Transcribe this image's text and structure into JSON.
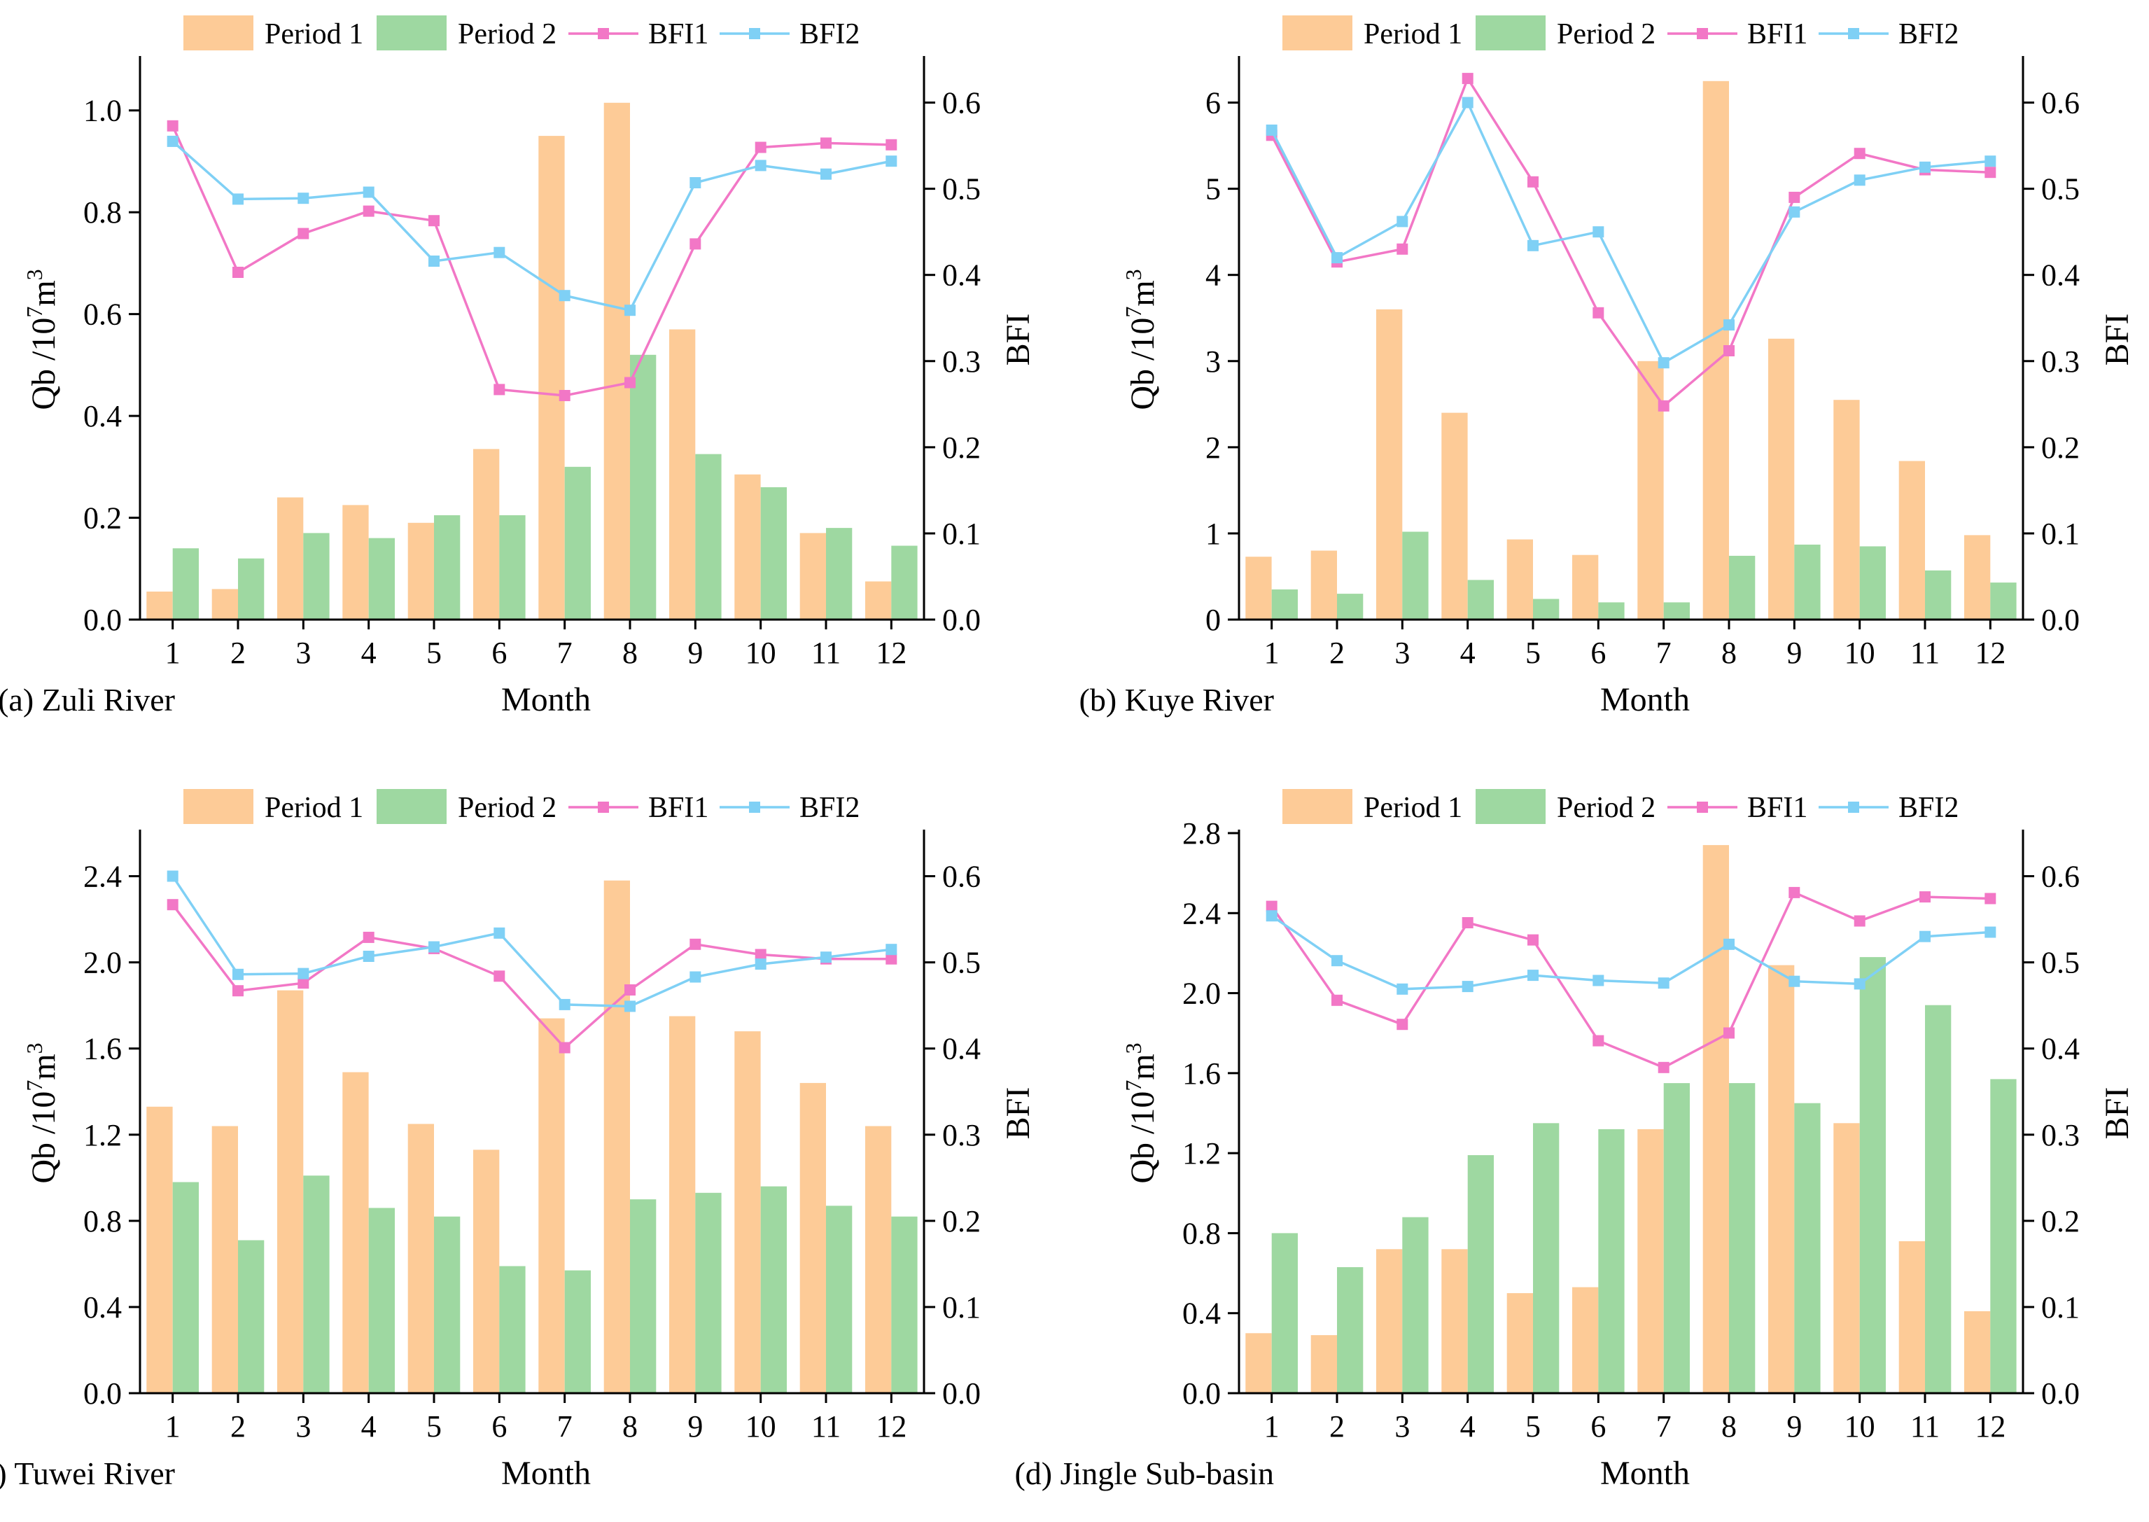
{
  "legend": {
    "p1": "Period 1",
    "p2": "Period 2",
    "b1": "BFI1",
    "b2": "BFI2"
  },
  "colors": {
    "p1": "#FDCB97",
    "p2": "#9ED8A1",
    "b1": "#F277C6",
    "b2": "#7FD0F5",
    "axis": "#000000"
  },
  "chart_data": [
    {
      "type": "bar",
      "panel": "a",
      "title": "(a) Zuli River",
      "xlabel": "Month",
      "ylabel": "Qb /10^7m^3",
      "y2label": "BFI",
      "categories": [
        "1",
        "2",
        "3",
        "4",
        "5",
        "6",
        "7",
        "8",
        "9",
        "10",
        "11",
        "12"
      ],
      "ylim": [
        0,
        1.1
      ],
      "yticks": [
        "0.0",
        "0.2",
        "0.4",
        "0.6",
        "0.8",
        "1.0"
      ],
      "y2lim": [
        0,
        0.65
      ],
      "y2ticks": [
        "0.0",
        "0.1",
        "0.2",
        "0.3",
        "0.4",
        "0.5",
        "0.6"
      ],
      "series": [
        {
          "name": "Period 1",
          "kind": "bar",
          "values": [
            0.055,
            0.06,
            0.24,
            0.225,
            0.19,
            0.335,
            0.95,
            1.015,
            0.57,
            0.285,
            0.17,
            0.075
          ]
        },
        {
          "name": "Period 2",
          "kind": "bar",
          "values": [
            0.14,
            0.12,
            0.17,
            0.16,
            0.205,
            0.205,
            0.3,
            0.52,
            0.325,
            0.26,
            0.18,
            0.145
          ]
        },
        {
          "name": "BFI1",
          "kind": "line",
          "axis": "y2",
          "values": [
            0.573,
            0.403,
            0.448,
            0.474,
            0.463,
            0.267,
            0.26,
            0.275,
            0.436,
            0.548,
            0.553,
            0.551
          ]
        },
        {
          "name": "BFI2",
          "kind": "line",
          "axis": "y2",
          "values": [
            0.555,
            0.488,
            0.489,
            0.496,
            0.416,
            0.426,
            0.376,
            0.359,
            0.507,
            0.527,
            0.517,
            0.532
          ]
        }
      ]
    },
    {
      "type": "bar",
      "panel": "b",
      "title": "(b) Kuye River",
      "xlabel": "Month",
      "ylabel": "Qb /10^7m^3",
      "y2label": "BFI",
      "categories": [
        "1",
        "2",
        "3",
        "4",
        "5",
        "6",
        "7",
        "8",
        "9",
        "10",
        "11",
        "12"
      ],
      "ylim": [
        0,
        6.5
      ],
      "yticks": [
        "0",
        "1",
        "2",
        "3",
        "4",
        "5",
        "6"
      ],
      "y2lim": [
        0,
        0.65
      ],
      "y2ticks": [
        "0.0",
        "0.1",
        "0.2",
        "0.3",
        "0.4",
        "0.5",
        "0.6"
      ],
      "series": [
        {
          "name": "Period 1",
          "kind": "bar",
          "values": [
            0.73,
            0.8,
            3.6,
            2.4,
            0.93,
            0.75,
            3.0,
            6.25,
            3.26,
            2.55,
            1.84,
            0.98
          ]
        },
        {
          "name": "Period 2",
          "kind": "bar",
          "values": [
            0.35,
            0.3,
            1.02,
            0.46,
            0.24,
            0.2,
            0.2,
            0.74,
            0.87,
            0.85,
            0.57,
            0.43
          ]
        },
        {
          "name": "BFI1",
          "kind": "line",
          "axis": "y2",
          "values": [
            0.562,
            0.415,
            0.43,
            0.628,
            0.508,
            0.356,
            0.248,
            0.312,
            0.49,
            0.541,
            0.522,
            0.519
          ]
        },
        {
          "name": "BFI2",
          "kind": "line",
          "axis": "y2",
          "values": [
            0.568,
            0.42,
            0.462,
            0.6,
            0.434,
            0.45,
            0.298,
            0.342,
            0.473,
            0.51,
            0.525,
            0.532
          ]
        }
      ]
    },
    {
      "type": "bar",
      "panel": "c",
      "title": "(c) Tuwei River",
      "xlabel": "Month",
      "ylabel": "Qb /10^7m^3",
      "y2label": "BFI",
      "categories": [
        "1",
        "2",
        "3",
        "4",
        "5",
        "6",
        "7",
        "8",
        "9",
        "10",
        "11",
        "12"
      ],
      "ylim": [
        0,
        2.6
      ],
      "yticks": [
        "0.0",
        "0.4",
        "0.8",
        "1.2",
        "1.6",
        "2.0",
        "2.4"
      ],
      "y2lim": [
        0,
        0.65
      ],
      "y2ticks": [
        "0.0",
        "0.1",
        "0.2",
        "0.3",
        "0.4",
        "0.5",
        "0.6"
      ],
      "series": [
        {
          "name": "Period 1",
          "kind": "bar",
          "values": [
            1.33,
            1.24,
            1.87,
            1.49,
            1.25,
            1.13,
            1.74,
            2.38,
            1.75,
            1.68,
            1.44,
            1.24
          ]
        },
        {
          "name": "Period 2",
          "kind": "bar",
          "values": [
            0.98,
            0.71,
            1.01,
            0.86,
            0.82,
            0.59,
            0.57,
            0.9,
            0.93,
            0.96,
            0.87,
            0.82
          ]
        },
        {
          "name": "BFI1",
          "kind": "line",
          "axis": "y2",
          "values": [
            0.567,
            0.467,
            0.476,
            0.529,
            0.516,
            0.484,
            0.401,
            0.468,
            0.521,
            0.509,
            0.504,
            0.504
          ]
        },
        {
          "name": "BFI2",
          "kind": "line",
          "axis": "y2",
          "values": [
            0.6,
            0.486,
            0.487,
            0.507,
            0.518,
            0.534,
            0.451,
            0.449,
            0.483,
            0.498,
            0.506,
            0.515
          ]
        }
      ]
    },
    {
      "type": "bar",
      "panel": "d",
      "title": "(d) Jingle Sub-basin",
      "xlabel": "Month",
      "ylabel": "Qb /10^7m^3",
      "y2label": "BFI",
      "categories": [
        "1",
        "2",
        "3",
        "4",
        "5",
        "6",
        "7",
        "8",
        "9",
        "10",
        "11",
        "12"
      ],
      "ylim": [
        0,
        2.8
      ],
      "yticks": [
        "0.0",
        "0.4",
        "0.8",
        "1.2",
        "1.6",
        "2.0",
        "2.4",
        "2.8"
      ],
      "y2lim": [
        0,
        0.65
      ],
      "y2ticks": [
        "0.0",
        "0.1",
        "0.2",
        "0.3",
        "0.4",
        "0.5",
        "0.6"
      ],
      "series": [
        {
          "name": "Period 1",
          "kind": "bar",
          "values": [
            0.3,
            0.29,
            0.72,
            0.72,
            0.5,
            0.53,
            1.32,
            2.74,
            2.14,
            1.35,
            0.76,
            0.41
          ]
        },
        {
          "name": "Period 2",
          "kind": "bar",
          "values": [
            0.8,
            0.63,
            0.88,
            1.19,
            1.35,
            1.32,
            1.55,
            1.55,
            1.45,
            2.18,
            1.94,
            1.57
          ]
        },
        {
          "name": "BFI1",
          "kind": "line",
          "axis": "y2",
          "values": [
            0.565,
            0.456,
            0.428,
            0.546,
            0.526,
            0.409,
            0.378,
            0.418,
            0.581,
            0.548,
            0.576,
            0.574
          ]
        },
        {
          "name": "BFI2",
          "kind": "line",
          "axis": "y2",
          "values": [
            0.554,
            0.502,
            0.469,
            0.472,
            0.485,
            0.479,
            0.476,
            0.521,
            0.478,
            0.475,
            0.53,
            0.535
          ]
        }
      ]
    }
  ]
}
